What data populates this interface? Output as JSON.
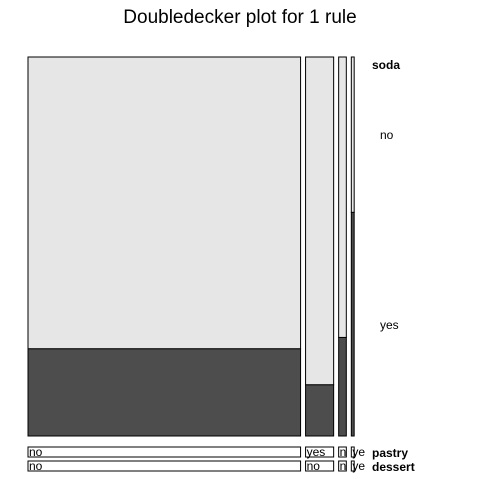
{
  "chart_data": {
    "type": "doubledecker",
    "title": "Doubledecker plot for 1 rule",
    "response": {
      "name": "soda",
      "levels": [
        "no",
        "yes"
      ],
      "colors": [
        "#e6e6e6",
        "#4d4d4d"
      ]
    },
    "factors": [
      {
        "name": "pastry",
        "levels": [
          "no",
          "yes"
        ]
      },
      {
        "name": "dessert",
        "levels": [
          "no",
          "yes"
        ]
      }
    ],
    "cells": [
      {
        "pastry": "no",
        "dessert": "no",
        "share": 0.8465,
        "soda_yes": 0.23
      },
      {
        "pastry": "yes",
        "dessert": "no",
        "share": 0.0872,
        "soda_yes": 0.135
      },
      {
        "pastry": "no",
        "dessert": "yes",
        "share": 0.0238,
        "soda_yes": 0.26
      },
      {
        "pastry": "yes",
        "dessert": "yes",
        "share": 0.0089,
        "soda_yes": 0.59
      }
    ],
    "cell_labels": [
      "no",
      "yes",
      "n",
      "ye"
    ]
  }
}
